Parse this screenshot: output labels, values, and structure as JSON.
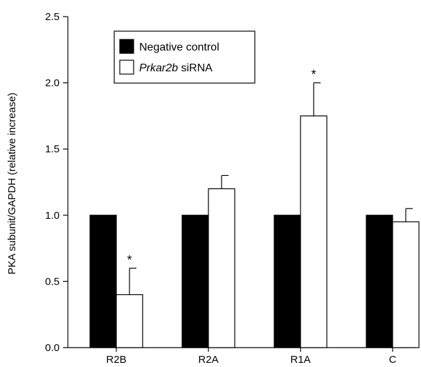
{
  "chart_data": {
    "type": "bar",
    "categories": [
      "R2B",
      "R2A",
      "R1A",
      "C"
    ],
    "series": [
      {
        "name": "Negative control",
        "name_italic": "",
        "name_rest": "Negative control",
        "color": "#000000",
        "values": [
          1.0,
          1.0,
          1.0,
          1.0
        ],
        "errors": [
          0,
          0,
          0,
          0
        ],
        "significant": [
          false,
          false,
          false,
          false
        ]
      },
      {
        "name": "Prkar2b siRNA",
        "name_italic": "Prkar2b",
        "name_rest": " siRNA",
        "color": "#ffffff",
        "values": [
          0.4,
          1.2,
          1.75,
          0.95
        ],
        "errors": [
          0.2,
          0.1,
          0.25,
          0.1
        ],
        "significant": [
          true,
          false,
          true,
          false
        ]
      }
    ],
    "ylabel": "PKA subunit/GAPDH (relative increase)",
    "xlabel": "",
    "ylim": [
      0,
      2.5
    ],
    "yticks": [
      "0.0",
      "0.5",
      "1.0",
      "1.5",
      "2.0",
      "2.5"
    ],
    "significance_marker": "*",
    "legend_position": "top-left",
    "grid": false
  }
}
